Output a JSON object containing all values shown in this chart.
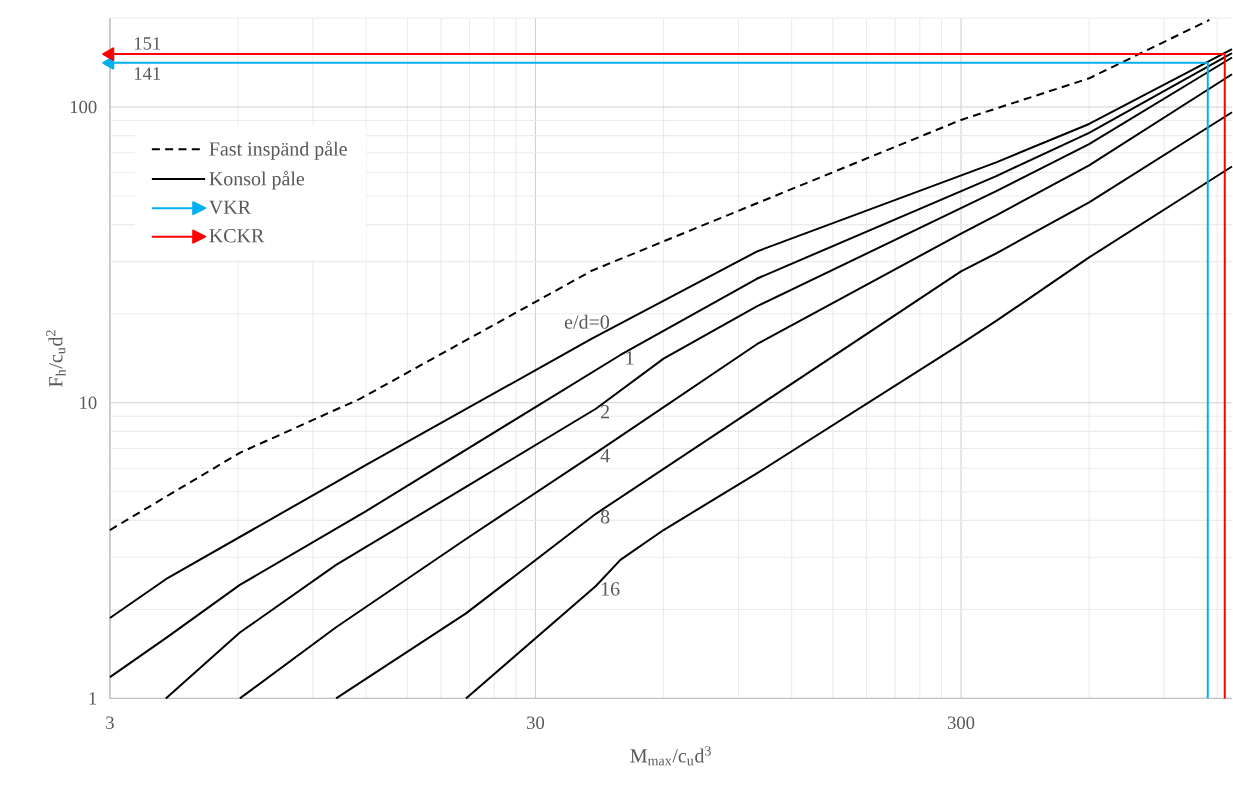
{
  "chart_data": {
    "type": "line",
    "xlabel": "M$_{max}$/c$_{u}$d$^{3}$",
    "ylabel": "F$_{h}$/c$_{u}$d$^{2}$",
    "log": "xy",
    "grid": true,
    "legend": "top left",
    "xlim": [
      3,
      1300
    ],
    "ylim": [
      1,
      200
    ],
    "xticks": [
      3,
      30,
      300
    ],
    "yticks": [
      1,
      10,
      100
    ],
    "series": [
      {
        "name": "Fast inspänd påle",
        "color": "#000000",
        "line_style": "dashed",
        "x": [
          3,
          6.06,
          11.6,
          40.8,
          300,
          600,
          1150
        ],
        "values": [
          3.71,
          6.77,
          10.3,
          28,
          90.4,
          125,
          197
        ]
      },
      {
        "name": "Konsol påle",
        "color": "#000000",
        "line_style": "solid",
        "x": [
          3,
          4.06,
          10.2,
          12,
          40.8,
          99.6,
          363,
          600,
          1300
        ],
        "values": [
          1.87,
          2.53,
          5.39,
          6.16,
          16.5,
          32.5,
          65,
          87.6,
          157
        ]
      },
      {
        "color": "#000000",
        "line_style": "solid",
        "x": [
          3,
          4.06,
          6.06,
          12,
          47.5,
          99.6,
          363,
          600,
          1300
        ],
        "values": [
          1.18,
          1.6,
          2.42,
          4.3,
          14.5,
          26.3,
          58.4,
          81.7,
          152
        ]
      },
      {
        "color": "#000000",
        "line_style": "solid",
        "x": [
          4.06,
          6.06,
          10.2,
          20.6,
          41.6,
          60,
          99.6,
          363,
          600,
          1300
        ],
        "values": [
          1,
          1.67,
          2.83,
          5.19,
          9.54,
          14.1,
          21.2,
          51.9,
          74.9,
          147
        ]
      },
      {
        "color": "#000000",
        "line_style": "solid",
        "x": [
          6.06,
          10.2,
          20.6,
          41.6,
          99.6,
          300,
          363,
          600,
          1300
        ],
        "values": [
          1,
          1.74,
          3.46,
          6.77,
          15.8,
          37.3,
          43,
          63.5,
          129
        ]
      },
      {
        "color": "#000000",
        "line_style": "solid",
        "x": [
          10.2,
          20.6,
          41.6,
          300,
          363,
          600,
          1300
        ],
        "values": [
          1,
          1.94,
          4.21,
          27.8,
          32,
          47.6,
          96
        ]
      },
      {
        "color": "#000000",
        "line_style": "solid",
        "x": [
          20.6,
          41.6,
          47.5,
          60,
          99.6,
          300,
          363,
          600,
          1300
        ],
        "values": [
          1,
          2.4,
          2.94,
          3.71,
          5.78,
          15.8,
          18.9,
          31,
          62.9
        ]
      },
      {
        "name": "VKR",
        "color": "#00b0f0",
        "line_style": "solid",
        "x": [
          1140,
          1140,
          3
        ],
        "values": [
          1,
          141,
          141
        ]
      },
      {
        "name": "KCKR",
        "color": "#ff0000",
        "line_style": "solid",
        "x": [
          1250,
          1250,
          3
        ],
        "values": [
          1,
          151,
          151
        ]
      }
    ],
    "annotations": [
      {
        "text": "151",
        "x": 3,
        "y": 151
      },
      {
        "text": "141",
        "x": 3,
        "y": 141
      },
      {
        "text": "e/d=0",
        "x": 40.8,
        "y": 16.5
      },
      {
        "text": "1",
        "x": 47.5,
        "y": 14.5
      },
      {
        "text": "2",
        "x": 41.6,
        "y": 9.54
      },
      {
        "text": "4",
        "x": 41.6,
        "y": 6.77
      },
      {
        "text": "8",
        "x": 41.6,
        "y": 4.21
      },
      {
        "text": "16",
        "x": 41.6,
        "y": 2.4
      }
    ]
  }
}
